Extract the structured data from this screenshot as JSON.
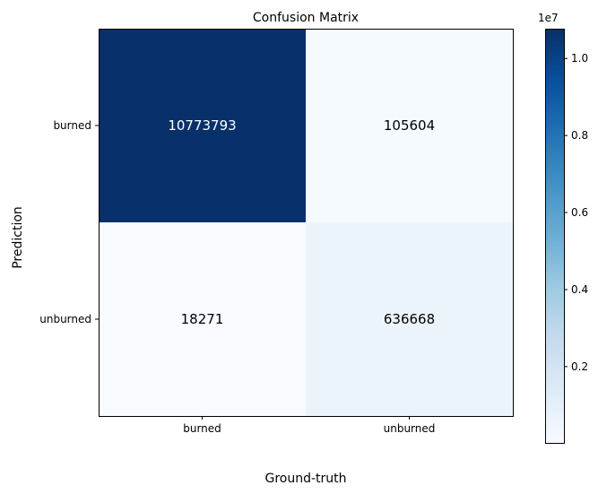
{
  "chart_data": {
    "type": "heatmap",
    "title": "Confusion Matrix",
    "xlabel": "Ground-truth",
    "ylabel": "Prediction",
    "x_categories": [
      "burned",
      "unburned"
    ],
    "y_categories": [
      "burned",
      "unburned"
    ],
    "values": [
      [
        10773793,
        105604
      ],
      [
        18271,
        636668
      ]
    ],
    "colormap": "Blues",
    "colorbar": {
      "offset_label": "1e7",
      "tick_values": [
        0.2,
        0.4,
        0.6,
        0.8,
        1.0
      ],
      "tick_labels": [
        "0.2",
        "0.4",
        "0.6",
        "0.8",
        "1.0"
      ],
      "scale": 10000000
    },
    "text_colors": {
      "dark": "#ffffff",
      "light": "#000000"
    }
  }
}
